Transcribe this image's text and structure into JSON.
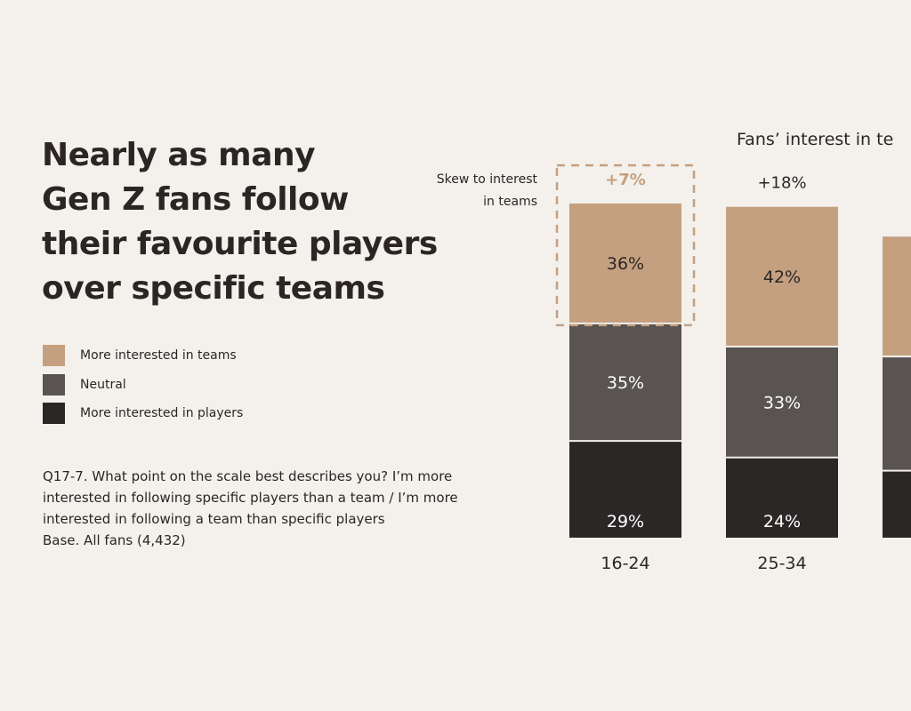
{
  "headline": [
    "Nearly as many",
    "Gen Z fans follow",
    "their favourite players",
    "over specific teams"
  ],
  "legend": [
    {
      "label": "More interested in teams",
      "color": "#c4a080"
    },
    {
      "label": "Neutral",
      "color": "#595352"
    },
    {
      "label": "More interested in players",
      "color": "#2b2726"
    }
  ],
  "note": [
    "Q17-7. What point on the scale best describes you? I’m more",
    "interested in following specific players than a team / I’m more",
    "interested in following a team than specific players",
    "Base. All fans (4,432)"
  ],
  "chart_data": {
    "type": "bar",
    "stacked": true,
    "title": "Fans’ interest in te",
    "skew_label": [
      "Skew to interest",
      "in teams"
    ],
    "categories": [
      "16-24",
      "25-34",
      ""
    ],
    "skews": [
      "+7%",
      "+18%",
      ""
    ],
    "series": [
      {
        "name": "More interested in teams",
        "values": [
          36,
          42,
          36
        ]
      },
      {
        "name": "Neutral",
        "values": [
          35,
          33,
          34
        ]
      },
      {
        "name": "More interested in players",
        "values": [
          29,
          24,
          20
        ]
      }
    ],
    "data_labels": [
      [
        "36%",
        "42%",
        ""
      ],
      [
        "35%",
        "33%",
        ""
      ],
      [
        "29%",
        "24%",
        ""
      ]
    ],
    "colors": [
      "#c4a080",
      "#595352",
      "#2b2726"
    ],
    "highlight_color": "#c4a080",
    "ylim": [
      0,
      100
    ],
    "legend_position": "left"
  }
}
